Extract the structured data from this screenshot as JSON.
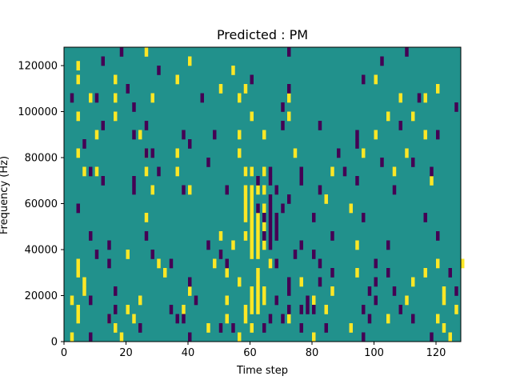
{
  "chart_data": {
    "type": "heatmap",
    "title": "Predicted : PM",
    "xlabel": "Time step",
    "ylabel": "Frequency (Hz)",
    "xlim": [
      0,
      128
    ],
    "ylim": [
      0,
      128000
    ],
    "x_ticks": [
      0,
      20,
      40,
      60,
      80,
      100,
      120
    ],
    "y_ticks": [
      0,
      20000,
      40000,
      60000,
      80000,
      100000,
      120000
    ],
    "n_time_bins": 128,
    "n_freq_bins": 128,
    "value_range": [
      -1,
      1
    ],
    "colors": {
      "background": "#21918c",
      "high": "#fde725",
      "low": "#440154"
    },
    "grid": false,
    "high_cells": [
      [
        26,
        124000
      ],
      [
        40,
        120000
      ],
      [
        4,
        118000
      ],
      [
        54,
        116000
      ],
      [
        4,
        112000
      ],
      [
        16,
        112000
      ],
      [
        36,
        112000
      ],
      [
        50,
        108000
      ],
      [
        58,
        108000
      ],
      [
        100,
        112000
      ],
      [
        120,
        108000
      ],
      [
        8,
        104000
      ],
      [
        16,
        104000
      ],
      [
        28,
        104000
      ],
      [
        56,
        104000
      ],
      [
        72,
        104000
      ],
      [
        108,
        104000
      ],
      [
        116,
        104000
      ],
      [
        4,
        96000
      ],
      [
        16,
        96000
      ],
      [
        60,
        96000
      ],
      [
        72,
        96000
      ],
      [
        104,
        96000
      ],
      [
        112,
        96000
      ],
      [
        10,
        88000
      ],
      [
        24,
        88000
      ],
      [
        56,
        88000
      ],
      [
        64,
        88000
      ],
      [
        100,
        88000
      ],
      [
        116,
        88000
      ],
      [
        4,
        80000
      ],
      [
        26,
        80000
      ],
      [
        36,
        80000
      ],
      [
        56,
        80000
      ],
      [
        74,
        80000
      ],
      [
        96,
        80000
      ],
      [
        110,
        80000
      ],
      [
        6,
        72000
      ],
      [
        10,
        72000
      ],
      [
        26,
        72000
      ],
      [
        36,
        72000
      ],
      [
        58,
        72000
      ],
      [
        60,
        72000
      ],
      [
        64,
        72000
      ],
      [
        86,
        72000
      ],
      [
        106,
        72000
      ],
      [
        118,
        68000
      ],
      [
        28,
        64000
      ],
      [
        40,
        64000
      ],
      [
        58,
        64000
      ],
      [
        60,
        64000
      ],
      [
        62,
        64000
      ],
      [
        64,
        64000
      ],
      [
        58,
        60000
      ],
      [
        60,
        60000
      ],
      [
        84,
        60000
      ],
      [
        64,
        56000
      ],
      [
        60,
        56000
      ],
      [
        58,
        56000
      ],
      [
        92,
        56000
      ],
      [
        26,
        52000
      ],
      [
        58,
        52000
      ],
      [
        60,
        52000
      ],
      [
        62,
        52000
      ],
      [
        60,
        48000
      ],
      [
        62,
        48000
      ],
      [
        64,
        48000
      ],
      [
        58,
        44000
      ],
      [
        60,
        44000
      ],
      [
        62,
        44000
      ],
      [
        50,
        44000
      ],
      [
        60,
        40000
      ],
      [
        62,
        40000
      ],
      [
        64,
        40000
      ],
      [
        54,
        40000
      ],
      [
        94,
        40000
      ],
      [
        20,
        36000
      ],
      [
        60,
        36000
      ],
      [
        62,
        36000
      ],
      [
        4,
        32000
      ],
      [
        30,
        32000
      ],
      [
        48,
        32000
      ],
      [
        66,
        32000
      ],
      [
        120,
        32000
      ],
      [
        128,
        32000
      ],
      [
        4,
        28000
      ],
      [
        32,
        28000
      ],
      [
        52,
        28000
      ],
      [
        62,
        28000
      ],
      [
        94,
        28000
      ],
      [
        116,
        28000
      ],
      [
        6,
        24000
      ],
      [
        56,
        24000
      ],
      [
        62,
        24000
      ],
      [
        76,
        24000
      ],
      [
        112,
        24000
      ],
      [
        6,
        20000
      ],
      [
        40,
        20000
      ],
      [
        60,
        20000
      ],
      [
        62,
        20000
      ],
      [
        64,
        20000
      ],
      [
        86,
        20000
      ],
      [
        122,
        20000
      ],
      [
        2,
        16000
      ],
      [
        24,
        16000
      ],
      [
        52,
        16000
      ],
      [
        60,
        16000
      ],
      [
        62,
        16000
      ],
      [
        64,
        16000
      ],
      [
        80,
        16000
      ],
      [
        110,
        16000
      ],
      [
        122,
        16000
      ],
      [
        4,
        12000
      ],
      [
        20,
        12000
      ],
      [
        38,
        12000
      ],
      [
        58,
        12000
      ],
      [
        60,
        12000
      ],
      [
        62,
        12000
      ],
      [
        84,
        12000
      ],
      [
        126,
        12000
      ],
      [
        4,
        8000
      ],
      [
        14,
        8000
      ],
      [
        22,
        8000
      ],
      [
        52,
        8000
      ],
      [
        58,
        8000
      ],
      [
        72,
        8000
      ],
      [
        104,
        8000
      ],
      [
        120,
        8000
      ],
      [
        16,
        4000
      ],
      [
        46,
        4000
      ],
      [
        60,
        4000
      ],
      [
        92,
        4000
      ],
      [
        122,
        4000
      ],
      [
        2,
        0
      ],
      [
        18,
        0
      ],
      [
        56,
        0
      ],
      [
        80,
        0
      ],
      [
        124,
        0
      ]
    ],
    "low_cells": [
      [
        18,
        124000
      ],
      [
        72,
        124000
      ],
      [
        110,
        124000
      ],
      [
        12,
        120000
      ],
      [
        102,
        120000
      ],
      [
        30,
        116000
      ],
      [
        60,
        112000
      ],
      [
        96,
        112000
      ],
      [
        20,
        108000
      ],
      [
        72,
        108000
      ],
      [
        2,
        104000
      ],
      [
        10,
        104000
      ],
      [
        44,
        104000
      ],
      [
        114,
        104000
      ],
      [
        22,
        100000
      ],
      [
        70,
        100000
      ],
      [
        126,
        100000
      ],
      [
        12,
        92000
      ],
      [
        26,
        92000
      ],
      [
        70,
        92000
      ],
      [
        82,
        92000
      ],
      [
        108,
        92000
      ],
      [
        22,
        88000
      ],
      [
        38,
        88000
      ],
      [
        48,
        88000
      ],
      [
        94,
        88000
      ],
      [
        120,
        88000
      ],
      [
        6,
        84000
      ],
      [
        40,
        84000
      ],
      [
        94,
        84000
      ],
      [
        26,
        80000
      ],
      [
        28,
        80000
      ],
      [
        88,
        80000
      ],
      [
        46,
        76000
      ],
      [
        102,
        76000
      ],
      [
        112,
        76000
      ],
      [
        8,
        72000
      ],
      [
        30,
        72000
      ],
      [
        66,
        72000
      ],
      [
        76,
        72000
      ],
      [
        90,
        72000
      ],
      [
        118,
        72000
      ],
      [
        12,
        68000
      ],
      [
        22,
        68000
      ],
      [
        62,
        68000
      ],
      [
        66,
        68000
      ],
      [
        76,
        68000
      ],
      [
        94,
        68000
      ],
      [
        22,
        64000
      ],
      [
        38,
        64000
      ],
      [
        52,
        64000
      ],
      [
        68,
        64000
      ],
      [
        82,
        64000
      ],
      [
        106,
        64000
      ],
      [
        66,
        60000
      ],
      [
        72,
        60000
      ],
      [
        4,
        56000
      ],
      [
        62,
        56000
      ],
      [
        66,
        56000
      ],
      [
        70,
        56000
      ],
      [
        64,
        52000
      ],
      [
        66,
        52000
      ],
      [
        68,
        52000
      ],
      [
        80,
        52000
      ],
      [
        96,
        52000
      ],
      [
        116,
        52000
      ],
      [
        66,
        48000
      ],
      [
        68,
        48000
      ],
      [
        8,
        44000
      ],
      [
        26,
        44000
      ],
      [
        64,
        44000
      ],
      [
        66,
        44000
      ],
      [
        68,
        44000
      ],
      [
        86,
        44000
      ],
      [
        120,
        44000
      ],
      [
        14,
        40000
      ],
      [
        46,
        40000
      ],
      [
        66,
        40000
      ],
      [
        76,
        40000
      ],
      [
        104,
        40000
      ],
      [
        10,
        36000
      ],
      [
        28,
        36000
      ],
      [
        50,
        36000
      ],
      [
        74,
        36000
      ],
      [
        80,
        36000
      ],
      [
        14,
        32000
      ],
      [
        34,
        32000
      ],
      [
        52,
        32000
      ],
      [
        68,
        32000
      ],
      [
        82,
        32000
      ],
      [
        100,
        32000
      ],
      [
        86,
        28000
      ],
      [
        104,
        28000
      ],
      [
        124,
        28000
      ],
      [
        40,
        24000
      ],
      [
        72,
        24000
      ],
      [
        82,
        24000
      ],
      [
        100,
        24000
      ],
      [
        16,
        20000
      ],
      [
        72,
        20000
      ],
      [
        98,
        20000
      ],
      [
        106,
        20000
      ],
      [
        126,
        20000
      ],
      [
        8,
        16000
      ],
      [
        42,
        16000
      ],
      [
        68,
        16000
      ],
      [
        78,
        16000
      ],
      [
        100,
        16000
      ],
      [
        16,
        12000
      ],
      [
        34,
        12000
      ],
      [
        72,
        12000
      ],
      [
        96,
        12000
      ],
      [
        108,
        12000
      ],
      [
        14,
        8000
      ],
      [
        36,
        8000
      ],
      [
        38,
        8000
      ],
      [
        66,
        8000
      ],
      [
        70,
        8000
      ],
      [
        76,
        12000
      ],
      [
        78,
        12000
      ],
      [
        80,
        12000
      ],
      [
        98,
        8000
      ],
      [
        112,
        8000
      ],
      [
        24,
        4000
      ],
      [
        50,
        4000
      ],
      [
        54,
        4000
      ],
      [
        64,
        4000
      ],
      [
        76,
        4000
      ],
      [
        84,
        4000
      ],
      [
        8,
        0
      ],
      [
        40,
        0
      ],
      [
        96,
        0
      ],
      [
        118,
        0
      ]
    ]
  }
}
